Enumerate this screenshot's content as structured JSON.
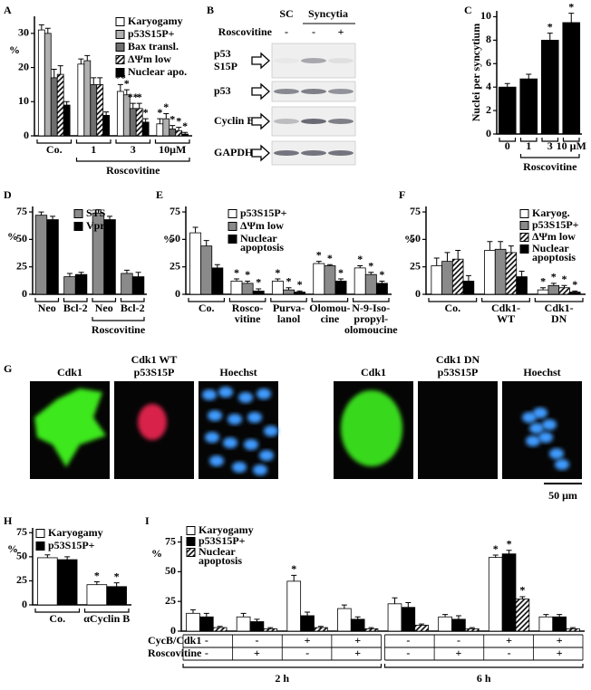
{
  "chart_data": [
    {
      "type": "bar",
      "panel": "A",
      "ylabel": "%",
      "ylim": [
        0,
        35
      ],
      "yticks": [
        0,
        10,
        20,
        30
      ],
      "categories": [
        "Co.",
        "1",
        "3",
        "10μM"
      ],
      "group_label": "Roscovitine",
      "series": [
        {
          "name": "Karyogamy",
          "color": "#ffffff",
          "values": [
            31,
            21,
            13,
            3.5
          ],
          "errors": [
            1.5,
            1.5,
            2,
            1.5
          ],
          "stars": [
            null,
            null,
            "**",
            "*"
          ]
        },
        {
          "name": "p53S15P+",
          "color": "#b0b0b0",
          "values": [
            30,
            22,
            12,
            5
          ],
          "errors": [
            1.5,
            1.5,
            1.5,
            1.5
          ],
          "stars": [
            null,
            null,
            "*",
            "*"
          ]
        },
        {
          "name": "Bax transl.",
          "color": "#6e6e6e",
          "values": [
            17,
            15,
            8,
            2
          ],
          "errors": [
            2.5,
            2,
            1.5,
            1
          ],
          "stars": [
            null,
            null,
            "**",
            "*"
          ]
        },
        {
          "name": "ΔΨm low",
          "color": "#ffffff",
          "hatch": true,
          "values": [
            18,
            15,
            8,
            1.5
          ],
          "errors": [
            2.5,
            2,
            1.5,
            1
          ],
          "stars": [
            null,
            null,
            "*",
            "*"
          ]
        },
        {
          "name": "Nuclear apo.",
          "color": "#000000",
          "values": [
            9,
            6,
            4,
            0.5
          ],
          "errors": [
            1,
            1,
            1,
            0.5
          ],
          "stars": [
            null,
            null,
            "*",
            "*"
          ]
        }
      ]
    },
    {
      "type": "bar",
      "panel": "C",
      "ylabel": "Nuclei per syncytium",
      "ylim": [
        0,
        10.5
      ],
      "yticks": [
        0,
        2,
        4,
        6,
        8,
        10
      ],
      "categories": [
        "0",
        "1",
        "3",
        "10 μM"
      ],
      "group_label": "Roscovitine",
      "series": [
        {
          "color": "#000000",
          "values": [
            4,
            4.7,
            8,
            9.5
          ],
          "errors": [
            0.3,
            0.4,
            0.6,
            0.8
          ],
          "stars": [
            null,
            null,
            "*",
            "*"
          ]
        }
      ]
    },
    {
      "type": "bar",
      "panel": "D",
      "ylabel": "%",
      "ylim": [
        0,
        80
      ],
      "yticks": [
        0,
        25,
        50,
        75
      ],
      "categories": [
        "Neo",
        "Bcl-2",
        "Neo",
        "Bcl-2"
      ],
      "group_label": "Roscovitine",
      "series": [
        {
          "name": "STS",
          "color": "#8a8a8a",
          "values": [
            72,
            16,
            74,
            19
          ],
          "errors": [
            3,
            3,
            3,
            3
          ]
        },
        {
          "name": "Vpr",
          "color": "#000000",
          "values": [
            68,
            18,
            68,
            16
          ],
          "errors": [
            3,
            2,
            3,
            4
          ]
        }
      ]
    },
    {
      "type": "bar",
      "panel": "E",
      "ylabel": "%",
      "ylim": [
        0,
        80
      ],
      "yticks": [
        0,
        25,
        50,
        75
      ],
      "categories": [
        "Co.",
        [
          "Rosco-",
          "vitine"
        ],
        [
          "Purva-",
          "lanol"
        ],
        [
          "Olomou-",
          "cine"
        ],
        [
          "N-9-Iso-",
          "propyl-",
          "olomoucine"
        ]
      ],
      "series": [
        {
          "name": "p53S15P+",
          "color": "#ffffff",
          "values": [
            56,
            12,
            12,
            28,
            24
          ],
          "errors": [
            5,
            2,
            2,
            2,
            2
          ],
          "stars": [
            null,
            "*",
            "*",
            "*",
            "*"
          ]
        },
        {
          "name": "ΔΨm low",
          "color": "#8a8a8a",
          "values": [
            44,
            10,
            4,
            26,
            18
          ],
          "errors": [
            5,
            2,
            2,
            1,
            2
          ],
          "stars": [
            null,
            "*",
            "*",
            "*",
            "*"
          ]
        },
        {
          "name": [
            "Nuclear",
            "apoptosis"
          ],
          "color": "#000000",
          "values": [
            24,
            3,
            2,
            12,
            10
          ],
          "errors": [
            3,
            2,
            1,
            2,
            2
          ],
          "stars": [
            null,
            "*",
            "*",
            "*",
            "*"
          ]
        }
      ]
    },
    {
      "type": "bar",
      "panel": "F",
      "ylabel": "%",
      "ylim": [
        0,
        80
      ],
      "yticks": [
        0,
        25,
        50,
        75
      ],
      "categories": [
        "Co.",
        [
          "Cdk1-",
          "WT"
        ],
        [
          "Cdk1-",
          "DN"
        ]
      ],
      "series": [
        {
          "name": "Karyog.",
          "color": "#ffffff",
          "values": [
            26,
            40,
            4
          ],
          "errors": [
            7,
            8,
            2
          ],
          "stars": [
            null,
            null,
            "*"
          ]
        },
        {
          "name": "p53S15P+",
          "color": "#8a8a8a",
          "values": [
            30,
            41,
            8
          ],
          "errors": [
            8,
            7,
            2
          ],
          "stars": [
            null,
            null,
            "*"
          ]
        },
        {
          "name": "ΔΨm low",
          "color": "#ffffff",
          "hatch": true,
          "values": [
            32,
            38,
            6
          ],
          "errors": [
            8,
            6,
            2
          ],
          "stars": [
            null,
            null,
            "*"
          ]
        },
        {
          "name": [
            "Nuclear",
            "apoptosis"
          ],
          "color": "#000000",
          "values": [
            12,
            16,
            2
          ],
          "errors": [
            5,
            5,
            1
          ],
          "stars": [
            null,
            null,
            "*"
          ]
        }
      ]
    },
    {
      "type": "bar",
      "panel": "H",
      "ylabel": "%",
      "ylim": [
        0,
        80
      ],
      "yticks": [
        0,
        25,
        50,
        75
      ],
      "categories": [
        "Co.",
        "αCyclin B"
      ],
      "series": [
        {
          "name": "Karyogamy",
          "color": "#ffffff",
          "values": [
            49,
            21
          ],
          "errors": [
            3,
            3
          ],
          "stars": [
            null,
            "*"
          ]
        },
        {
          "name": "p53S15P+",
          "color": "#000000",
          "values": [
            47,
            19
          ],
          "errors": [
            3,
            4
          ],
          "stars": [
            null,
            "*"
          ]
        }
      ]
    },
    {
      "type": "bar",
      "panel": "I",
      "ylabel": "%",
      "ylim": [
        0,
        80
      ],
      "yticks": [
        0,
        25,
        50,
        75
      ],
      "categories": [
        null,
        null,
        null,
        null,
        null,
        null,
        null,
        null
      ],
      "series": [
        {
          "name": "Karyogamy",
          "color": "#ffffff",
          "values": [
            15,
            12,
            42,
            19,
            23,
            12,
            62,
            12
          ],
          "errors": [
            3,
            3,
            5,
            3,
            5,
            2,
            2,
            2
          ],
          "stars": [
            null,
            null,
            "*",
            null,
            null,
            null,
            "*",
            null
          ]
        },
        {
          "name": "p53S15P+",
          "color": "#000000",
          "values": [
            12,
            8,
            13,
            10,
            20,
            10,
            65,
            12
          ],
          "errors": [
            3,
            2,
            3,
            2,
            4,
            3,
            3,
            2
          ],
          "stars": [
            null,
            null,
            null,
            null,
            null,
            null,
            "*",
            null
          ]
        },
        {
          "name": [
            "Nuclear",
            "apoptosis"
          ],
          "color": "#ffffff",
          "hatch": true,
          "values": [
            3,
            2,
            3,
            2,
            5,
            2,
            27,
            2
          ],
          "errors": [
            1,
            1,
            1,
            1,
            1,
            1,
            2,
            1
          ],
          "stars": [
            null,
            null,
            null,
            null,
            null,
            null,
            "*",
            null
          ]
        }
      ],
      "table": [
        {
          "label": "CycB/Cdk1",
          "marks": [
            "-",
            "-",
            "+",
            "+",
            "-",
            "-",
            "+",
            "+"
          ]
        },
        {
          "label": "Roscovitine",
          "marks": [
            "-",
            "+",
            "-",
            "+",
            "-",
            "+",
            "-",
            "+"
          ]
        }
      ],
      "times": [
        "2 h",
        "6 h"
      ]
    }
  ],
  "blot": {
    "panel": "B",
    "header": [
      "SC",
      "Syncytia"
    ],
    "treatment": "Roscovitine",
    "lanes": [
      "-",
      "-",
      "+"
    ],
    "rows": [
      [
        "p53",
        "S15P"
      ],
      "p53",
      "Cyclin B",
      "GAPDH"
    ]
  },
  "micrographs": {
    "panel": "G",
    "groups": [
      {
        "title": "Cdk1 WT",
        "labels": [
          "Cdk1",
          "p53S15P",
          "Hoechst"
        ]
      },
      {
        "title": "Cdk1 DN",
        "labels": [
          "Cdk1",
          "p53S15P",
          "Hoechst"
        ]
      }
    ],
    "scale": "50 μm"
  }
}
